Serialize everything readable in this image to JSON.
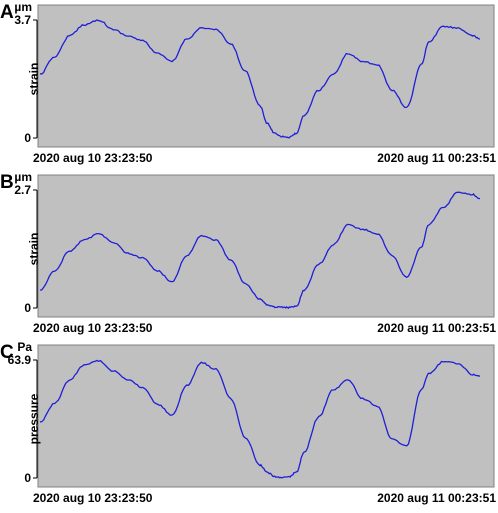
{
  "chart_data": [
    {
      "type": "line",
      "panel_label": "A",
      "unit": "µm",
      "ylabel": "strain",
      "ylim": [
        0,
        3.7
      ],
      "y_ticks": [
        "3.7",
        "0"
      ],
      "x_start_label": "2020 aug 10 23:23:50",
      "x_end_label": "2020 aug 11 00:23:51",
      "grid": false,
      "line_color": "#1f1fd6",
      "background": "#c0c0c0",
      "x_minutes": [
        0,
        2,
        4,
        6,
        8,
        10,
        12,
        14,
        16,
        18,
        20,
        22,
        24,
        26,
        28,
        30,
        31,
        32,
        33,
        34,
        35,
        36,
        38,
        40,
        42,
        44,
        46,
        48,
        50,
        52,
        53,
        55,
        57,
        59,
        60
      ],
      "values": [
        2.0,
        2.55,
        3.2,
        3.55,
        3.7,
        3.4,
        3.2,
        3.05,
        2.65,
        2.4,
        3.1,
        3.45,
        3.4,
        2.95,
        2.1,
        1.0,
        0.45,
        0.15,
        0.05,
        0.02,
        0.15,
        0.7,
        1.5,
        2.0,
        2.65,
        2.4,
        2.3,
        1.5,
        0.95,
        2.3,
        3.0,
        3.5,
        3.45,
        3.2,
        3.1
      ]
    },
    {
      "type": "line",
      "panel_label": "B",
      "unit": "µm",
      "ylabel": "strain",
      "ylim": [
        0,
        2.7
      ],
      "y_ticks": [
        "2.7",
        "0"
      ],
      "x_start_label": "2020 aug 10 23:23:50",
      "x_end_label": "2020 aug 11 00:23:51",
      "grid": false,
      "line_color": "#1f1fd6",
      "background": "#c0c0c0",
      "x_minutes": [
        0,
        2,
        4,
        6,
        8,
        10,
        12,
        14,
        16,
        18,
        20,
        22,
        24,
        26,
        28,
        30,
        31,
        32,
        33,
        34,
        35,
        36,
        38,
        40,
        42,
        44,
        46,
        48,
        50,
        52,
        53,
        55,
        57,
        59,
        60
      ],
      "values": [
        0.4,
        0.85,
        1.3,
        1.55,
        1.7,
        1.5,
        1.25,
        1.15,
        0.85,
        0.6,
        1.2,
        1.65,
        1.55,
        1.1,
        0.55,
        0.2,
        0.08,
        0.02,
        0.02,
        0.01,
        0.05,
        0.4,
        1.0,
        1.45,
        1.9,
        1.8,
        1.7,
        1.2,
        0.7,
        1.4,
        1.9,
        2.3,
        2.65,
        2.6,
        2.5
      ]
    },
    {
      "type": "line",
      "panel_label": "C",
      "unit": "Pa",
      "ylabel": "pressure",
      "ylim": [
        0,
        63.9
      ],
      "y_ticks": [
        "63.9",
        "0"
      ],
      "x_start_label": "2020 aug 10 23:23:50",
      "x_end_label": "2020 aug 11 00:23:51",
      "grid": false,
      "line_color": "#1f1fd6",
      "background": "#c0c0c0",
      "x_minutes": [
        0,
        2,
        4,
        6,
        8,
        10,
        12,
        14,
        16,
        18,
        20,
        22,
        24,
        26,
        28,
        30,
        31,
        32,
        33,
        34,
        35,
        36,
        38,
        40,
        42,
        44,
        46,
        48,
        50,
        52,
        53,
        55,
        57,
        59,
        60
      ],
      "values": [
        30.0,
        40.5,
        53.0,
        61.0,
        63.5,
        58.0,
        53.0,
        49.0,
        40.0,
        34.0,
        50.0,
        62.5,
        59.0,
        43.0,
        22.0,
        7.0,
        3.0,
        0.8,
        0.3,
        0.6,
        3.5,
        14.0,
        33.0,
        48.0,
        53.0,
        43.0,
        39.0,
        21.0,
        17.5,
        48.0,
        56.5,
        63.0,
        62.0,
        56.0,
        55.0
      ]
    }
  ]
}
